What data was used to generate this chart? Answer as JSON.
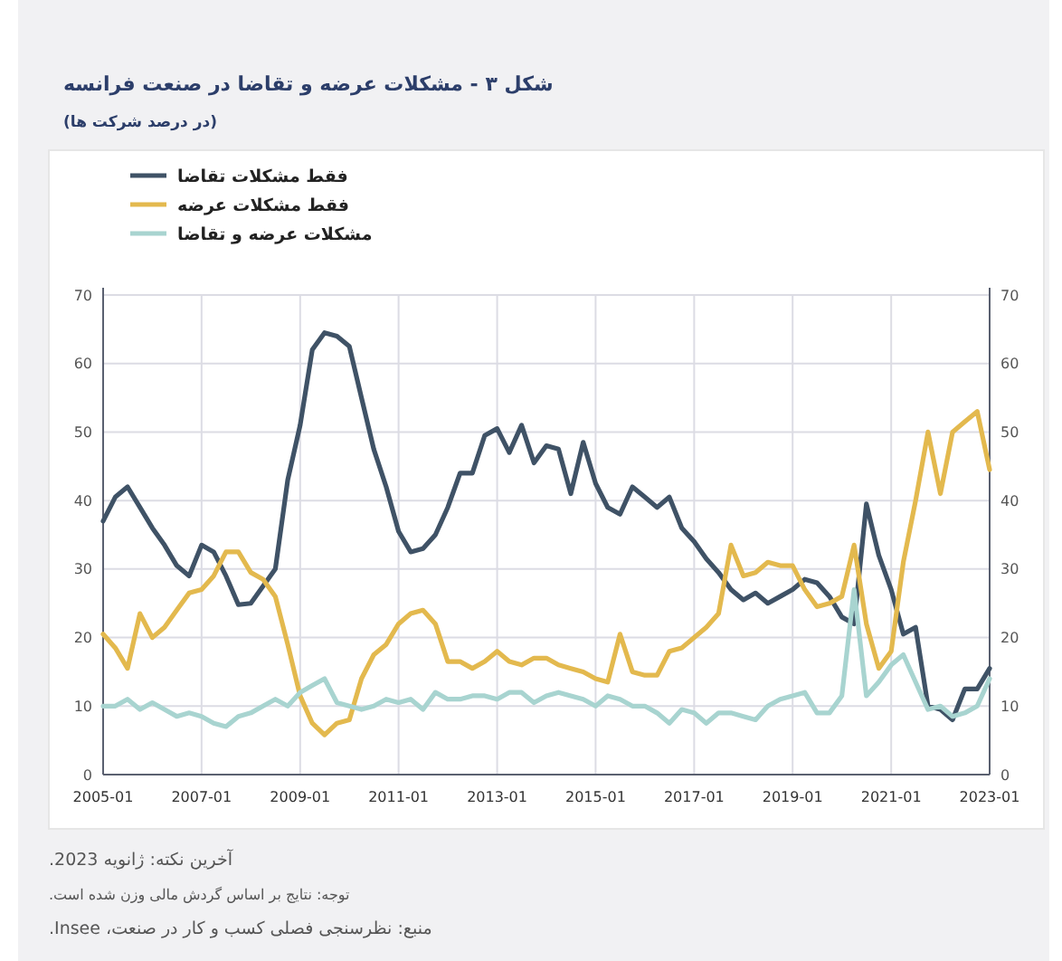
{
  "chart_data": {
    "type": "line",
    "title": "شکل ۳ - مشکلات عرضه و تقاضا در صنعت فرانسه",
    "subtitle": "(در درصد شرکت ها)",
    "annotations": [
      "آخرین نکته: ژانویه 2023.",
      "توجه: نتایج بر اساس گردش مالی وزن شده است.",
      "منبع: نظرسنجی فصلی کسب و کار در صنعت، Insee."
    ],
    "x": [
      "2005-01",
      "2005-04",
      "2005-07",
      "2005-10",
      "2006-01",
      "2006-04",
      "2006-07",
      "2006-10",
      "2007-01",
      "2007-04",
      "2007-07",
      "2007-10",
      "2008-01",
      "2008-04",
      "2008-07",
      "2008-10",
      "2009-01",
      "2009-04",
      "2009-07",
      "2009-10",
      "2010-01",
      "2010-04",
      "2010-07",
      "2010-10",
      "2011-01",
      "2011-04",
      "2011-07",
      "2011-10",
      "2012-01",
      "2012-04",
      "2012-07",
      "2012-10",
      "2013-01",
      "2013-04",
      "2013-07",
      "2013-10",
      "2014-01",
      "2014-04",
      "2014-07",
      "2014-10",
      "2015-01",
      "2015-04",
      "2015-07",
      "2015-10",
      "2016-01",
      "2016-04",
      "2016-07",
      "2016-10",
      "2017-01",
      "2017-04",
      "2017-07",
      "2017-10",
      "2018-01",
      "2018-04",
      "2018-07",
      "2018-10",
      "2019-01",
      "2019-04",
      "2019-07",
      "2019-10",
      "2020-01",
      "2020-04",
      "2020-07",
      "2020-10",
      "2021-01",
      "2021-04",
      "2021-07",
      "2021-10",
      "2022-01",
      "2022-04",
      "2022-07",
      "2022-10",
      "2023-01"
    ],
    "series": [
      {
        "name": "فقط مشکلات تقاضا",
        "color": "#3f5266",
        "values": [
          37,
          40.5,
          42,
          39,
          36,
          33.5,
          30.5,
          29,
          33.5,
          32.5,
          29,
          24.8,
          25,
          27.5,
          30,
          43,
          51,
          62,
          64.5,
          64,
          62.5,
          55,
          47.5,
          42,
          35.5,
          32.5,
          33,
          35,
          39,
          44,
          44,
          49.5,
          50.5,
          47,
          51,
          45.5,
          48,
          47.5,
          41,
          48.5,
          42.5,
          39,
          38,
          42,
          40.5,
          39,
          40.5,
          36,
          34,
          31.5,
          29.5,
          27,
          25.5,
          26.5,
          25,
          26,
          27,
          28.5,
          28,
          26,
          23,
          22,
          39.5,
          32,
          27,
          20.5,
          21.5,
          10,
          9.5,
          8,
          12.5,
          12.5,
          15.5
        ]
      },
      {
        "name": "فقط مشکلات عرضه",
        "color": "#e3b94e",
        "values": [
          20.5,
          18.5,
          15.5,
          23.5,
          20,
          21.5,
          24,
          26.5,
          27,
          29,
          32.5,
          32.5,
          29.5,
          28.5,
          26,
          19,
          11.5,
          7.5,
          5.8,
          7.5,
          8,
          14,
          17.5,
          19,
          22,
          23.5,
          24,
          22,
          16.5,
          16.5,
          15.5,
          16.5,
          18,
          16.5,
          16,
          17,
          17,
          16,
          15.5,
          15,
          14,
          13.5,
          20.5,
          15,
          14.5,
          14.5,
          18,
          18.5,
          20,
          21.5,
          23.5,
          33.5,
          29,
          29.5,
          31,
          30.5,
          30.5,
          27,
          24.5,
          25,
          26,
          33.5,
          22,
          15.5,
          18,
          31,
          40,
          50,
          41,
          50,
          51.5,
          53,
          44.5
        ]
      },
      {
        "name": "مشکلات عرضه و تقاضا",
        "color": "#a8d4d0",
        "values": [
          10,
          10,
          11,
          9.5,
          10.5,
          9.5,
          8.5,
          9,
          8.5,
          7.5,
          7,
          8.5,
          9,
          10,
          11,
          10,
          12,
          13,
          14,
          10.5,
          10,
          9.5,
          10,
          11,
          10.5,
          11,
          9.5,
          12,
          11,
          11,
          11.5,
          11.5,
          11,
          12,
          12,
          10.5,
          11.5,
          12,
          11.5,
          11,
          10,
          11.5,
          11,
          10,
          10,
          9,
          7.5,
          9.5,
          9,
          7.5,
          9,
          9,
          8.5,
          8,
          10,
          11,
          11.5,
          12,
          9,
          9,
          11.5,
          27,
          11.5,
          13.5,
          16,
          17.5,
          13.5,
          9.5,
          10,
          8.5,
          9,
          10,
          14
        ]
      }
    ],
    "xlim": [
      "2005-01",
      "2023-01"
    ],
    "xticks": [
      {
        "value": "2005-01",
        "label": "2005-01"
      },
      {
        "value": "2007-01",
        "label": "2007-01"
      },
      {
        "value": "2009-01",
        "label": "2009-01"
      },
      {
        "value": "2011-01",
        "label": "2011-01"
      },
      {
        "value": "2013-01",
        "label": "2013-01"
      },
      {
        "value": "2015-01",
        "label": "2015-01"
      },
      {
        "value": "2017-01",
        "label": "2017-01"
      },
      {
        "value": "2019-01",
        "label": "2019-01"
      },
      {
        "value": "2021-01",
        "label": "2021-01"
      },
      {
        "value": "2023-01",
        "label": "2023-01"
      }
    ],
    "ylim": [
      0,
      70
    ],
    "yticks": [
      0,
      10,
      20,
      30,
      40,
      50,
      60,
      70
    ],
    "y2lim": [
      0,
      70
    ],
    "y2ticks": [
      0,
      10,
      20,
      30,
      40,
      50,
      60,
      70
    ],
    "grid": true,
    "legend": "top left",
    "line_style": "solid",
    "marker": "none"
  }
}
